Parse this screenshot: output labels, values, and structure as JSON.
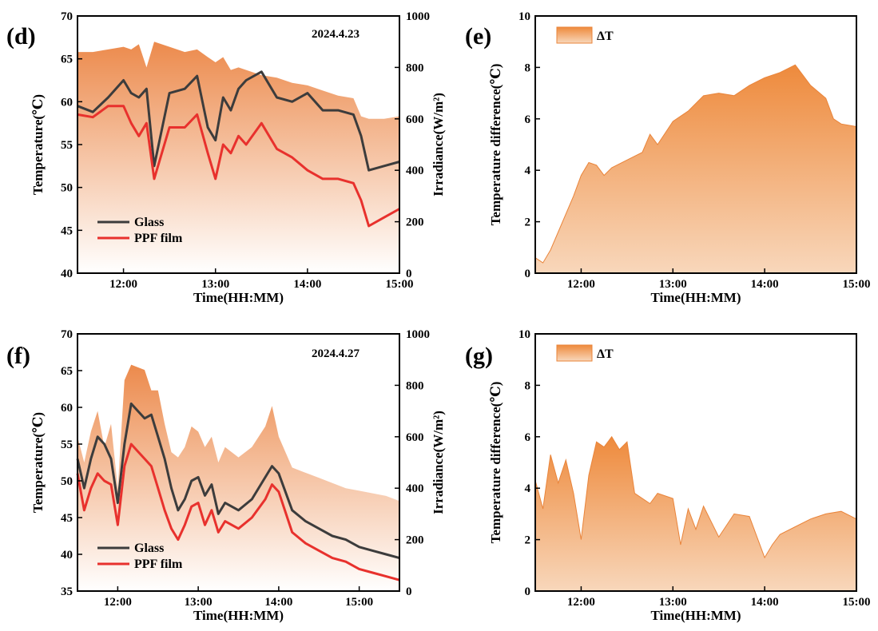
{
  "colors": {
    "glass": "#3c3c3c",
    "ppf": "#e8312d",
    "irradiance_top": "#ec8a4c",
    "irradiance_bottom": "#ffffff",
    "dt_top": "#ee8a3c",
    "dt_bottom": "#f8d7bb",
    "dt_line": "#e9843a"
  },
  "chart_data": [
    {
      "panel": "(d)",
      "type": "line",
      "date": "2024.4.23",
      "xlabel": "Time(HH:MM)",
      "ylabel": "Temperature(℃)",
      "y2label": "Irradiance(W/m²)",
      "xlim": [
        "11:30",
        "15:00"
      ],
      "xticks": [
        "12:00",
        "13:00",
        "14:00",
        "15:00"
      ],
      "ylim": [
        40,
        70
      ],
      "yticks": [
        "40",
        "45",
        "50",
        "55",
        "60",
        "65",
        "70"
      ],
      "y2lim": [
        0,
        1000
      ],
      "y2ticks": [
        "0",
        "200",
        "400",
        "600",
        "800",
        "1000"
      ],
      "legend": [
        "Glass",
        "PPF film"
      ],
      "x": [
        "11:30",
        "11:40",
        "11:50",
        "12:00",
        "12:05",
        "12:10",
        "12:15",
        "12:20",
        "12:30",
        "12:40",
        "12:48",
        "12:55",
        "13:00",
        "13:05",
        "13:10",
        "13:15",
        "13:20",
        "13:30",
        "13:40",
        "13:50",
        "14:00",
        "14:10",
        "14:20",
        "14:30",
        "14:35",
        "14:40",
        "14:50",
        "15:00"
      ],
      "series": [
        {
          "name": "Glass",
          "values": [
            59.5,
            58.8,
            60.5,
            62.5,
            61.0,
            60.5,
            61.5,
            52.5,
            61.0,
            61.5,
            63.0,
            57.0,
            55.5,
            60.5,
            59.0,
            61.5,
            62.5,
            63.5,
            60.5,
            60.0,
            61.0,
            59.0,
            59.0,
            58.5,
            56.0,
            52.0,
            52.5,
            53.0
          ]
        },
        {
          "name": "PPF film",
          "values": [
            58.5,
            58.2,
            59.5,
            59.5,
            57.5,
            56.0,
            57.5,
            51.0,
            57.0,
            57.0,
            58.5,
            54.0,
            51.0,
            55.0,
            54.0,
            56.0,
            55.0,
            57.5,
            54.5,
            53.5,
            52.0,
            51.0,
            51.0,
            50.5,
            48.5,
            45.5,
            46.5,
            47.5
          ]
        },
        {
          "name": "Irradiance",
          "axis": "right",
          "values": [
            860,
            860,
            870,
            880,
            870,
            890,
            800,
            900,
            880,
            860,
            870,
            840,
            820,
            840,
            790,
            800,
            790,
            770,
            760,
            740,
            730,
            710,
            690,
            680,
            610,
            600,
            600,
            610
          ]
        }
      ]
    },
    {
      "panel": "(e)",
      "type": "area",
      "xlabel": "Time(HH:MM)",
      "ylabel": "Temperature difference(℃)",
      "xlim": [
        "11:30",
        "15:00"
      ],
      "xticks": [
        "12:00",
        "13:00",
        "14:00",
        "15:00"
      ],
      "ylim": [
        0,
        10
      ],
      "yticks": [
        "0",
        "2",
        "4",
        "6",
        "8",
        "10"
      ],
      "legend": [
        "ΔT"
      ],
      "x": [
        "11:30",
        "11:35",
        "11:40",
        "11:45",
        "11:50",
        "11:55",
        "12:00",
        "12:05",
        "12:10",
        "12:15",
        "12:20",
        "12:30",
        "12:40",
        "12:45",
        "12:50",
        "13:00",
        "13:10",
        "13:20",
        "13:30",
        "13:40",
        "13:50",
        "14:00",
        "14:10",
        "14:20",
        "14:30",
        "14:40",
        "14:45",
        "14:50",
        "15:00"
      ],
      "series": [
        {
          "name": "ΔT",
          "values": [
            0.6,
            0.4,
            0.9,
            1.6,
            2.3,
            3.0,
            3.8,
            4.3,
            4.2,
            3.8,
            4.1,
            4.4,
            4.7,
            5.4,
            5.0,
            5.9,
            6.3,
            6.9,
            7.0,
            6.9,
            7.3,
            7.6,
            7.8,
            8.1,
            7.3,
            6.8,
            6.0,
            5.8,
            5.7
          ]
        }
      ]
    },
    {
      "panel": "(f)",
      "type": "line",
      "date": "2024.4.27",
      "xlabel": "Time(HH:MM)",
      "ylabel": "Temperature(℃)",
      "y2label": "Irradiance(W/m²)",
      "xlim": [
        "11:30",
        "15:30"
      ],
      "xticks": [
        "12:00",
        "13:00",
        "14:00",
        "15:00"
      ],
      "ylim": [
        35,
        70
      ],
      "yticks": [
        "35",
        "40",
        "45",
        "50",
        "55",
        "60",
        "65",
        "70"
      ],
      "y2lim": [
        0,
        1000
      ],
      "y2ticks": [
        "0",
        "200",
        "400",
        "600",
        "800",
        "1000"
      ],
      "legend": [
        "Glass",
        "PPF film"
      ],
      "x": [
        "11:30",
        "11:35",
        "11:40",
        "11:45",
        "11:50",
        "11:55",
        "12:00",
        "12:05",
        "12:10",
        "12:15",
        "12:20",
        "12:25",
        "12:30",
        "12:35",
        "12:40",
        "12:45",
        "12:50",
        "12:55",
        "13:00",
        "13:05",
        "13:10",
        "13:15",
        "13:20",
        "13:30",
        "13:40",
        "13:50",
        "13:55",
        "14:00",
        "14:10",
        "14:20",
        "14:30",
        "14:40",
        "14:50",
        "15:00",
        "15:10",
        "15:20",
        "15:30"
      ],
      "series": [
        {
          "name": "Glass",
          "values": [
            53.0,
            49.0,
            53.0,
            56.0,
            55.0,
            53.0,
            47.0,
            55.0,
            60.5,
            59.5,
            58.5,
            59.0,
            56.0,
            53.0,
            49.0,
            46.0,
            47.5,
            50.0,
            50.5,
            48.0,
            49.5,
            45.5,
            47.0,
            46.0,
            47.5,
            50.5,
            52.0,
            51.0,
            46.0,
            44.5,
            43.5,
            42.5,
            42.0,
            41.0,
            40.5,
            40.0,
            39.5
          ]
        },
        {
          "name": "PPF film",
          "values": [
            51.0,
            46.0,
            49.0,
            51.0,
            50.0,
            49.5,
            44.0,
            52.0,
            55.0,
            54.0,
            53.0,
            52.0,
            49.0,
            46.0,
            43.5,
            42.0,
            44.0,
            46.5,
            47.0,
            44.0,
            46.0,
            43.0,
            44.5,
            43.5,
            45.0,
            47.5,
            49.5,
            48.5,
            43.0,
            41.5,
            40.5,
            39.5,
            39.0,
            38.0,
            37.5,
            37.0,
            36.5
          ]
        },
        {
          "name": "Irradiance",
          "axis": "right",
          "values": [
            600,
            500,
            620,
            700,
            560,
            650,
            400,
            820,
            880,
            870,
            860,
            780,
            780,
            650,
            540,
            520,
            560,
            640,
            620,
            560,
            600,
            500,
            560,
            520,
            560,
            640,
            720,
            600,
            480,
            460,
            440,
            420,
            400,
            390,
            380,
            370,
            350
          ]
        }
      ]
    },
    {
      "panel": "(g)",
      "type": "area",
      "xlabel": "Time(HH:MM)",
      "ylabel": "Temperature difference(℃)",
      "xlim": [
        "11:30",
        "15:00"
      ],
      "xticks": [
        "12:00",
        "13:00",
        "14:00",
        "15:00"
      ],
      "ylim": [
        0,
        10
      ],
      "yticks": [
        "0",
        "2",
        "4",
        "6",
        "8",
        "10"
      ],
      "legend": [
        "ΔT"
      ],
      "x": [
        "11:30",
        "11:35",
        "11:40",
        "11:45",
        "11:50",
        "11:55",
        "12:00",
        "12:05",
        "12:10",
        "12:15",
        "12:20",
        "12:25",
        "12:30",
        "12:35",
        "12:40",
        "12:45",
        "12:50",
        "13:00",
        "13:05",
        "13:10",
        "13:15",
        "13:20",
        "13:30",
        "13:40",
        "13:50",
        "14:00",
        "14:05",
        "14:10",
        "14:20",
        "14:30",
        "14:40",
        "14:50",
        "15:00"
      ],
      "series": [
        {
          "name": "ΔT",
          "values": [
            4.3,
            3.2,
            5.3,
            4.2,
            5.1,
            3.8,
            2.0,
            4.5,
            5.8,
            5.6,
            6.0,
            5.5,
            5.8,
            3.8,
            3.6,
            3.4,
            3.8,
            3.6,
            1.8,
            3.2,
            2.4,
            3.3,
            2.1,
            3.0,
            2.9,
            1.3,
            1.8,
            2.2,
            2.5,
            2.8,
            3.0,
            3.1,
            2.8
          ]
        }
      ]
    }
  ]
}
